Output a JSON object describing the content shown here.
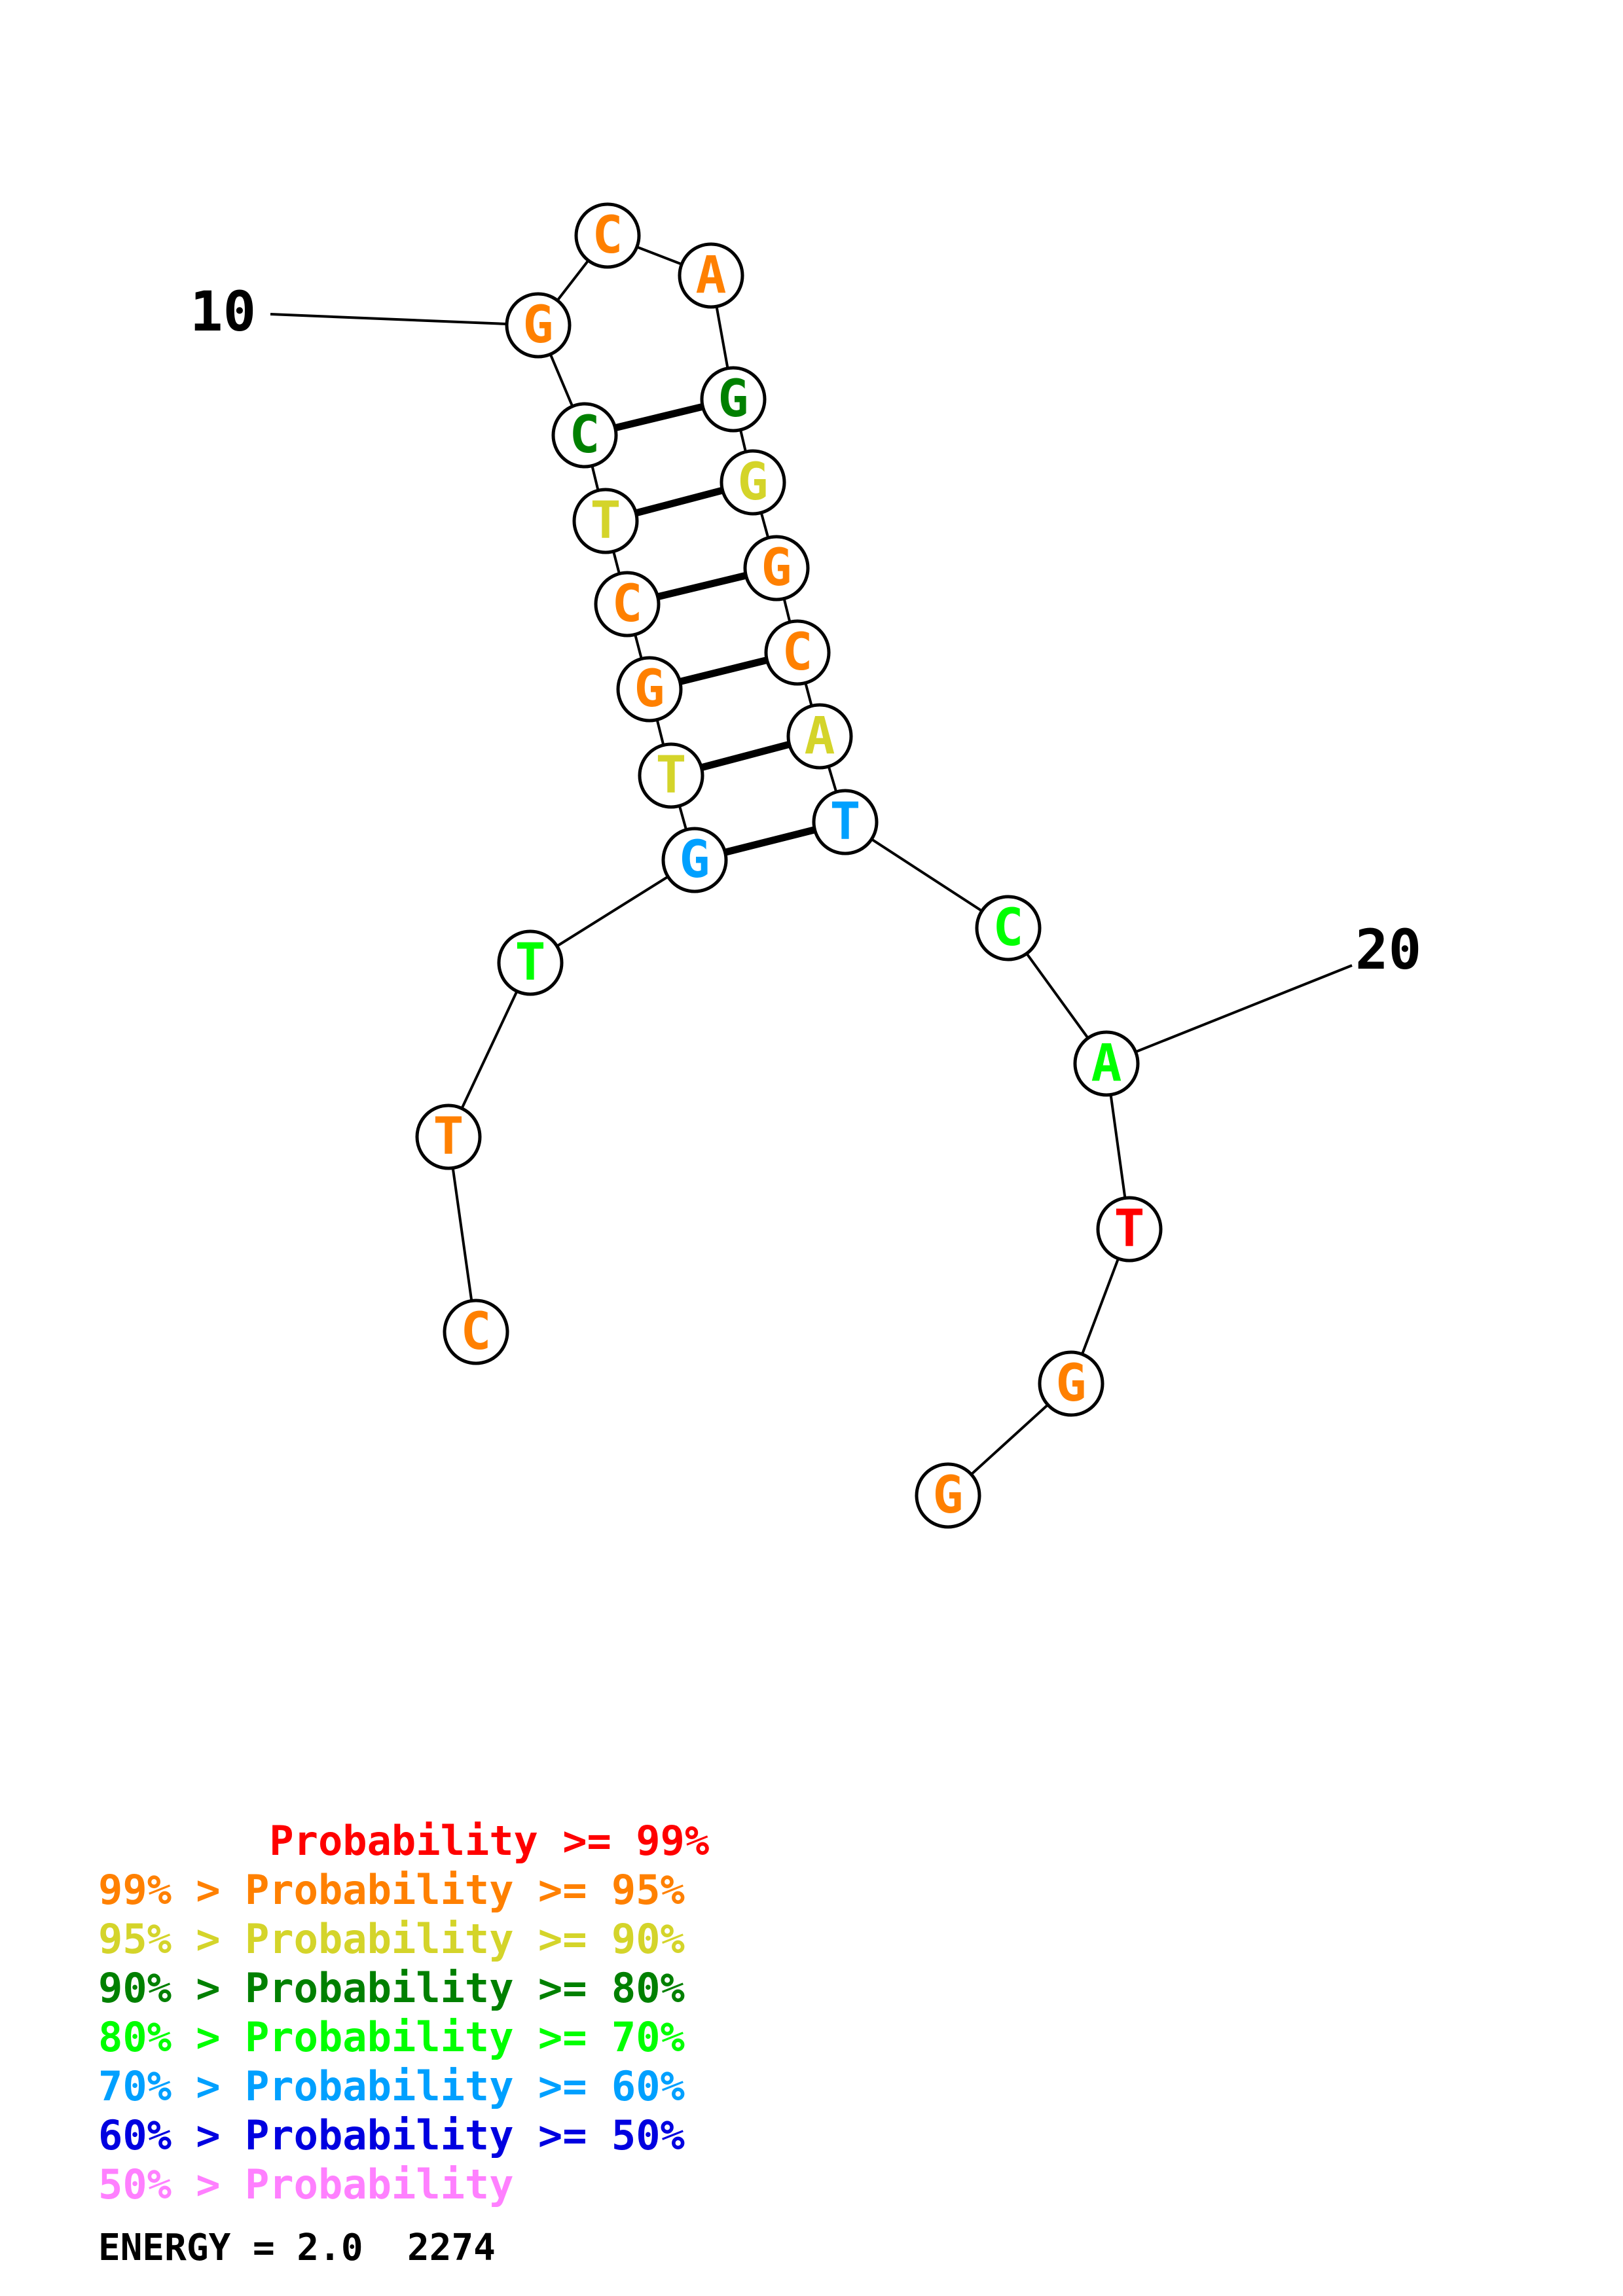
{
  "structure": {
    "nucleotides": [
      {
        "base": "C",
        "color": "#ff8000"
      },
      {
        "base": "T",
        "color": "#ff8000"
      },
      {
        "base": "T",
        "color": "#00ff00"
      },
      {
        "base": "G",
        "color": "#00a0ff"
      },
      {
        "base": "T",
        "color": "#d4d42a"
      },
      {
        "base": "G",
        "color": "#ff8000"
      },
      {
        "base": "C",
        "color": "#ff8000"
      },
      {
        "base": "T",
        "color": "#d4d42a"
      },
      {
        "base": "C",
        "color": "#008000"
      },
      {
        "base": "G",
        "color": "#ff8000"
      },
      {
        "base": "C",
        "color": "#ff8000"
      },
      {
        "base": "A",
        "color": "#ff8000"
      },
      {
        "base": "G",
        "color": "#008000"
      },
      {
        "base": "G",
        "color": "#d4d42a"
      },
      {
        "base": "G",
        "color": "#ff8000"
      },
      {
        "base": "C",
        "color": "#ff8000"
      },
      {
        "base": "A",
        "color": "#d4d42a"
      },
      {
        "base": "T",
        "color": "#00a0ff"
      },
      {
        "base": "C",
        "color": "#00ff00"
      },
      {
        "base": "A",
        "color": "#00ff00"
      },
      {
        "base": "T",
        "color": "#ff0000"
      },
      {
        "base": "G",
        "color": "#ff8000"
      },
      {
        "base": "G",
        "color": "#ff8000"
      }
    ],
    "pairs": [
      [
        4,
        18
      ],
      [
        5,
        17
      ],
      [
        6,
        16
      ],
      [
        7,
        15
      ],
      [
        8,
        14
      ],
      [
        9,
        13
      ]
    ],
    "position_labels": [
      {
        "text": "10",
        "index": 10
      },
      {
        "text": "20",
        "index": 20
      }
    ]
  },
  "legend": [
    {
      "prefix": "       ",
      "text": "Probability >= 99%",
      "color": "#ff0000"
    },
    {
      "prefix": "",
      "text": "99% > Probability >= 95%",
      "color": "#ff8000"
    },
    {
      "prefix": "",
      "text": "95% > Probability >= 90%",
      "color": "#d4d42a"
    },
    {
      "prefix": "",
      "text": "90% > Probability >= 80%",
      "color": "#008000"
    },
    {
      "prefix": "",
      "text": "80% > Probability >= 70%",
      "color": "#00ff00"
    },
    {
      "prefix": "",
      "text": "70% > Probability >= 60%",
      "color": "#00a0ff"
    },
    {
      "prefix": "",
      "text": "60% > Probability >= 50%",
      "color": "#0000e0"
    },
    {
      "prefix": "",
      "text": "50% > Probability",
      "color": "#ff80ff"
    }
  ],
  "energy_text": "ENERGY = 2.0  2274"
}
